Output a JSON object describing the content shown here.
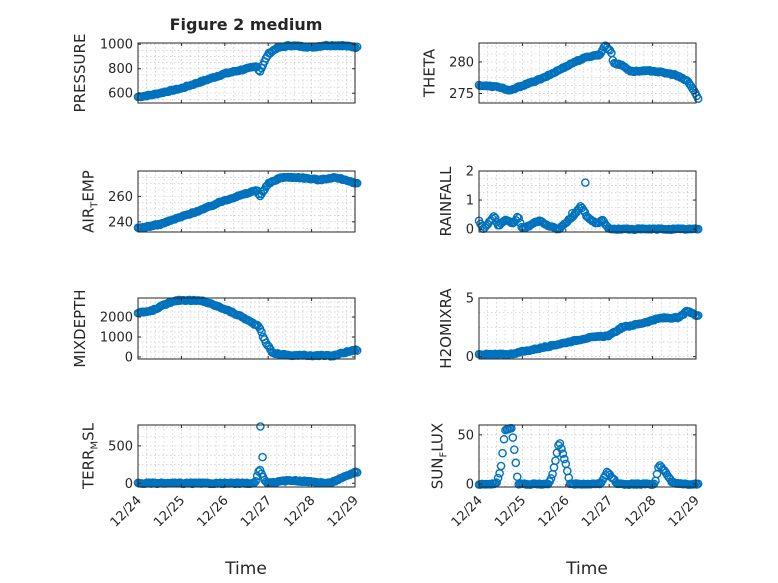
{
  "figure": {
    "title": "Figure 2 medium",
    "marker_color": "#0072BD",
    "x_axis": {
      "label": "Time",
      "range": [
        "12/24",
        "12/29"
      ],
      "ticks": [
        "12/24",
        "12/25",
        "12/26",
        "12/27",
        "12/28",
        "12/29"
      ]
    }
  },
  "chart_data": [
    {
      "type": "scatter",
      "ylabel": "PRESSURE",
      "ylim": [
        520,
        1010
      ],
      "yticks": [
        600,
        800,
        1000
      ],
      "grid": true,
      "knots": [
        [
          0.0,
          570
        ],
        [
          0.3,
          585
        ],
        [
          1.0,
          640
        ],
        [
          1.5,
          700
        ],
        [
          2.0,
          760
        ],
        [
          2.75,
          820
        ],
        [
          2.8,
          770
        ],
        [
          2.85,
          810
        ],
        [
          3.0,
          920
        ],
        [
          3.2,
          970
        ],
        [
          3.5,
          990
        ],
        [
          4.0,
          975
        ],
        [
          4.3,
          990
        ],
        [
          4.7,
          990
        ],
        [
          5.0,
          975
        ]
      ]
    },
    {
      "type": "scatter",
      "ylabel": "THETA",
      "ylim": [
        273.5,
        283
      ],
      "yticks": [
        275,
        280
      ],
      "grid": true,
      "knots": [
        [
          0.0,
          276.3
        ],
        [
          0.5,
          276.0
        ],
        [
          0.7,
          275.4
        ],
        [
          0.9,
          276.0
        ],
        [
          1.5,
          277.5
        ],
        [
          2.2,
          280.0
        ],
        [
          2.5,
          280.8
        ],
        [
          2.8,
          281.2
        ],
        [
          2.9,
          282.7
        ],
        [
          3.05,
          281.5
        ],
        [
          3.1,
          279.8
        ],
        [
          3.3,
          279.5
        ],
        [
          3.5,
          278.5
        ],
        [
          4.0,
          278.6
        ],
        [
          4.5,
          278.0
        ],
        [
          4.8,
          277.0
        ],
        [
          4.95,
          275.5
        ],
        [
          5.05,
          274.2
        ]
      ]
    },
    {
      "type": "scatter",
      "ylabel": "AIR_TEMP",
      "ylim": [
        232,
        280
      ],
      "yticks": [
        240,
        260
      ],
      "grid": true,
      "knots": [
        [
          0.0,
          235
        ],
        [
          0.5,
          238
        ],
        [
          1.0,
          244
        ],
        [
          1.5,
          250
        ],
        [
          2.0,
          257
        ],
        [
          2.75,
          265
        ],
        [
          2.8,
          260
        ],
        [
          2.85,
          262
        ],
        [
          3.0,
          270
        ],
        [
          3.3,
          275
        ],
        [
          3.7,
          275
        ],
        [
          4.2,
          273
        ],
        [
          4.5,
          275
        ],
        [
          4.8,
          273
        ],
        [
          5.0,
          270
        ]
      ]
    },
    {
      "type": "scatter",
      "ylabel": "RAINFALL",
      "ylim": [
        -0.1,
        2
      ],
      "yticks": [
        0,
        1,
        2
      ],
      "grid": true,
      "knots": [
        [
          0.0,
          0.3
        ],
        [
          0.1,
          0.0
        ],
        [
          0.35,
          0.45
        ],
        [
          0.45,
          0.1
        ],
        [
          0.6,
          0.3
        ],
        [
          0.8,
          0.2
        ],
        [
          0.9,
          0.45
        ],
        [
          1.0,
          0.0
        ],
        [
          1.2,
          0.15
        ],
        [
          1.4,
          0.3
        ],
        [
          1.6,
          0.1
        ],
        [
          1.85,
          0.0
        ],
        [
          2.2,
          0.5
        ],
        [
          2.35,
          0.8
        ],
        [
          2.5,
          0.4
        ],
        [
          2.7,
          0.2
        ],
        [
          2.85,
          0.3
        ],
        [
          3.0,
          0.0
        ],
        [
          5.0,
          0.0
        ]
      ],
      "outliers": [
        [
          2.45,
          1.6
        ],
        [
          2.15,
          0.55
        ]
      ]
    },
    {
      "type": "scatter",
      "ylabel": "MIXDEPTH",
      "ylim": [
        -100,
        2950
      ],
      "yticks": [
        0,
        1000,
        2000
      ],
      "grid": true,
      "knots": [
        [
          0.0,
          2200
        ],
        [
          0.3,
          2300
        ],
        [
          0.8,
          2800
        ],
        [
          1.0,
          2850
        ],
        [
          1.5,
          2800
        ],
        [
          2.0,
          2400
        ],
        [
          2.4,
          2000
        ],
        [
          2.8,
          1500
        ],
        [
          2.9,
          900
        ],
        [
          3.1,
          200
        ],
        [
          3.5,
          80
        ],
        [
          4.0,
          80
        ],
        [
          4.5,
          60
        ],
        [
          4.7,
          200
        ],
        [
          5.0,
          350
        ]
      ]
    },
    {
      "type": "scatter",
      "ylabel": "H2OMIXRA",
      "ylim": [
        -0.2,
        5
      ],
      "yticks": [
        0,
        5
      ],
      "grid": true,
      "knots": [
        [
          0.0,
          0.2
        ],
        [
          0.7,
          0.2
        ],
        [
          1.5,
          0.8
        ],
        [
          2.0,
          1.2
        ],
        [
          2.5,
          1.6
        ],
        [
          3.0,
          1.8
        ],
        [
          3.3,
          2.5
        ],
        [
          3.7,
          2.8
        ],
        [
          4.2,
          3.3
        ],
        [
          4.6,
          3.3
        ],
        [
          4.8,
          3.9
        ],
        [
          5.0,
          3.5
        ]
      ]
    },
    {
      "type": "scatter",
      "ylabel": "TERR_MSL",
      "ylim": [
        -50,
        780
      ],
      "yticks": [
        0,
        500
      ],
      "grid": true,
      "knots": [
        [
          0.0,
          0
        ],
        [
          2.7,
          0
        ],
        [
          2.8,
          200
        ],
        [
          2.9,
          50
        ],
        [
          3.0,
          0
        ],
        [
          3.5,
          40
        ],
        [
          4.0,
          20
        ],
        [
          4.4,
          0
        ],
        [
          4.7,
          70
        ],
        [
          5.0,
          150
        ]
      ],
      "outliers": [
        [
          2.82,
          760
        ],
        [
          2.87,
          350
        ]
      ]
    },
    {
      "type": "scatter",
      "ylabel": "SUN_FLUX",
      "ylim": [
        -3,
        60
      ],
      "yticks": [
        0,
        50
      ],
      "grid": true,
      "knots": [
        [
          0.0,
          0
        ],
        [
          0.4,
          0
        ],
        [
          0.5,
          15
        ],
        [
          0.6,
          55
        ],
        [
          0.75,
          57
        ],
        [
          0.8,
          40
        ],
        [
          0.85,
          20
        ],
        [
          0.9,
          0
        ],
        [
          1.6,
          0
        ],
        [
          1.7,
          10
        ],
        [
          1.85,
          44
        ],
        [
          2.0,
          20
        ],
        [
          2.1,
          0
        ],
        [
          2.8,
          0
        ],
        [
          2.95,
          12
        ],
        [
          3.1,
          5
        ],
        [
          3.2,
          0
        ],
        [
          4.05,
          0
        ],
        [
          4.15,
          20
        ],
        [
          4.3,
          12
        ],
        [
          4.45,
          2
        ],
        [
          4.6,
          0
        ],
        [
          5.0,
          0
        ]
      ]
    }
  ]
}
